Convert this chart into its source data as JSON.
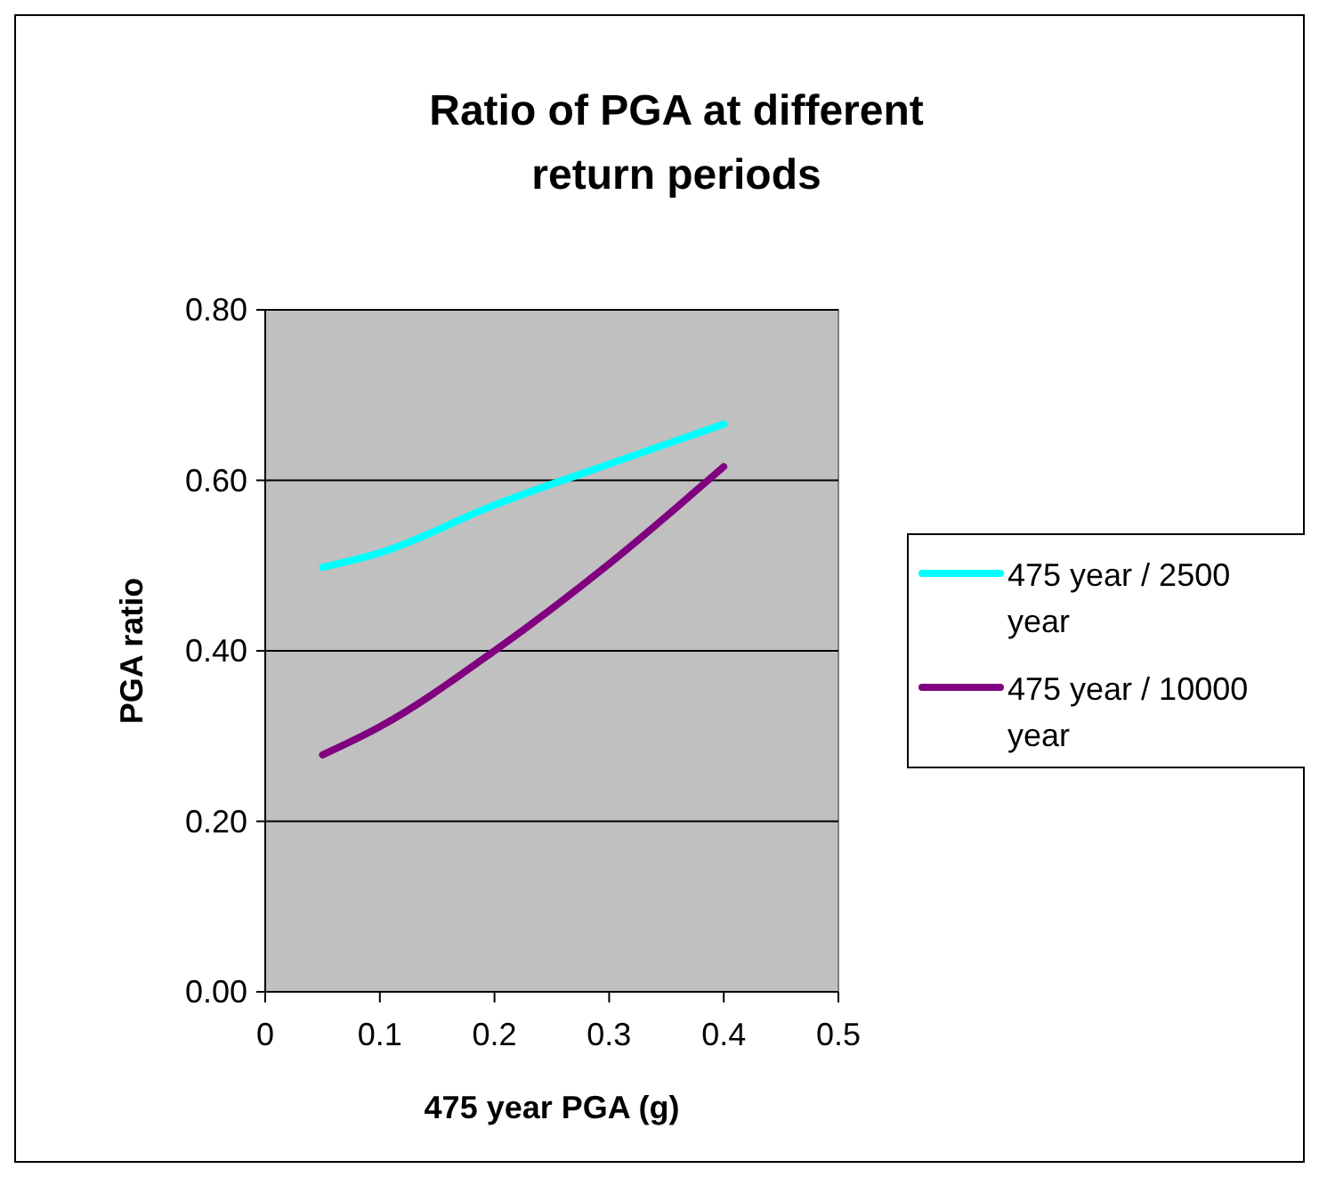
{
  "chart_data": {
    "type": "line",
    "title": "Ratio of PGA at different return periods",
    "xlabel": "475 year PGA (g)",
    "ylabel": "PGA ratio",
    "xlim": [
      0,
      0.5
    ],
    "xticks": [
      0,
      0.1,
      0.2,
      0.3,
      0.4,
      0.5
    ],
    "ylim": [
      0,
      0.8
    ],
    "yticks": [
      {
        "value": 0,
        "label": "0.00"
      },
      {
        "value": 0.2,
        "label": "0.20"
      },
      {
        "value": 0.4,
        "label": "0.40"
      },
      {
        "value": 0.6,
        "label": "0.60"
      },
      {
        "value": 0.8,
        "label": "0.80"
      }
    ],
    "grid": "y",
    "legend": "right",
    "marker": "none",
    "line_style": "solid",
    "series": [
      {
        "name": "475 year / 2500 year",
        "color": "#00ffff",
        "x": [
          0.05,
          0.1,
          0.2,
          0.3,
          0.4
        ],
        "values": [
          0.498,
          0.515,
          0.571,
          0.619,
          0.666
        ]
      },
      {
        "name": "475 year / 10000 year",
        "color": "#800080",
        "x": [
          0.05,
          0.1,
          0.2,
          0.3,
          0.4
        ],
        "values": [
          0.278,
          0.311,
          0.4,
          0.502,
          0.616
        ]
      }
    ]
  }
}
